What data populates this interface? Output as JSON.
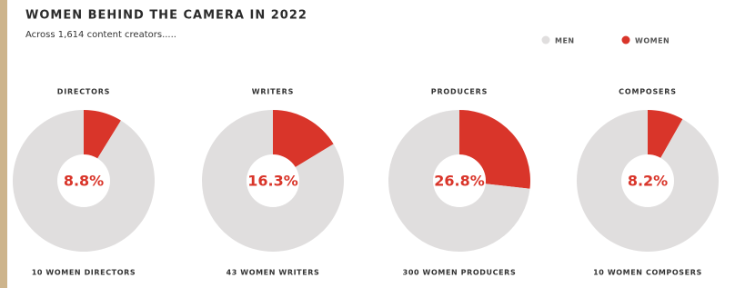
{
  "header": {
    "title": "WOMEN BEHIND THE CAMERA IN 2022",
    "subtitle": "Across 1,614 content creators.....",
    "series": [
      {
        "name": "MEN",
        "color": "#e0dede"
      },
      {
        "name": "WOMEN",
        "color": "#d9352a"
      }
    ]
  },
  "chart_data": [
    {
      "type": "donut",
      "title": "DIRECTORS",
      "values": [
        91.2,
        8.8
      ],
      "value_labels": [
        null,
        "8.8%"
      ],
      "annotation": "10 WOMEN DIRECTORS"
    },
    {
      "type": "donut",
      "title": "WRITERS",
      "values": [
        83.7,
        16.3
      ],
      "value_labels": [
        null,
        "16.3%"
      ],
      "annotation": "43 WOMEN WRITERS"
    },
    {
      "type": "donut",
      "title": "PRODUCERS",
      "values": [
        73.2,
        26.8
      ],
      "value_labels": [
        null,
        "26.8%"
      ],
      "annotation": "300 WOMEN PRODUCERS"
    },
    {
      "type": "donut",
      "title": "COMPOSERS",
      "values": [
        91.8,
        8.2
      ],
      "value_labels": [
        null,
        "8.2%"
      ],
      "annotation": "10 WOMEN COMPOSERS"
    }
  ]
}
